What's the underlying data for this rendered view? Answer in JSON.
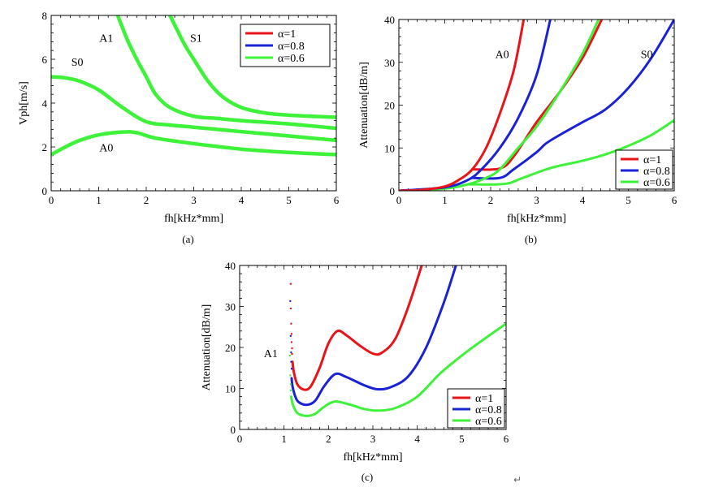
{
  "colors": {
    "alpha_1": "#e8141a",
    "alpha_0_8": "#1a22d6",
    "alpha_0_6": "#3ef23a"
  },
  "return_mark": "↵",
  "chart_data": [
    {
      "id": "a",
      "type": "line",
      "caption": "(a)",
      "xlabel": "fh[kHz*mm]",
      "ylabel": "Vph[m/s]",
      "xlim": [
        0,
        6
      ],
      "ylim": [
        0,
        8
      ],
      "xticks": [
        0,
        1,
        2,
        3,
        4,
        5,
        6
      ],
      "yticks": [
        0,
        2,
        4,
        6,
        8
      ],
      "legend_placement": "top-right",
      "legend_boxed": true,
      "legend": [
        {
          "label": "α=1",
          "color": "#e8141a"
        },
        {
          "label": "α=0.8",
          "color": "#1a22d6"
        },
        {
          "label": "α=0.6",
          "color": "#3ef23a"
        }
      ],
      "annotations": [
        {
          "text": "A1",
          "x": 1.16,
          "y": 6.8
        },
        {
          "text": "S1",
          "x": 3.05,
          "y": 6.8
        },
        {
          "text": "S0",
          "x": 0.55,
          "y": 5.7
        },
        {
          "text": "A0",
          "x": 1.16,
          "y": 1.8
        }
      ],
      "series": [
        {
          "mode": "A0",
          "color": "#3ef23a",
          "x": [
            0,
            0.3,
            0.6,
            1,
            1.5,
            1.8,
            2.2,
            3,
            4,
            5,
            6
          ],
          "y": [
            1.65,
            2.0,
            2.3,
            2.55,
            2.68,
            2.65,
            2.4,
            2.15,
            1.9,
            1.75,
            1.65
          ]
        },
        {
          "mode": "S0",
          "color": "#3ef23a",
          "x": [
            0,
            0.3,
            0.6,
            1,
            1.5,
            2,
            2.5,
            3,
            4,
            5,
            6
          ],
          "y": [
            5.2,
            5.15,
            5.0,
            4.6,
            3.8,
            3.15,
            3.0,
            2.9,
            2.7,
            2.5,
            2.3
          ]
        },
        {
          "mode": "A1",
          "color": "#3ef23a",
          "x": [
            1.4,
            1.6,
            1.8,
            2,
            2.2,
            2.5,
            3,
            3.5,
            4,
            5,
            6
          ],
          "y": [
            8,
            6.9,
            6.0,
            5.2,
            4.4,
            3.8,
            3.4,
            3.3,
            3.2,
            3.05,
            2.85
          ]
        },
        {
          "mode": "S1",
          "color": "#3ef23a",
          "x": [
            2.5,
            2.8,
            3,
            3.3,
            3.6,
            4,
            4.5,
            5,
            6
          ],
          "y": [
            8,
            6.7,
            6.0,
            5.0,
            4.3,
            3.8,
            3.55,
            3.45,
            3.35
          ]
        }
      ]
    },
    {
      "id": "b",
      "type": "line",
      "caption": "(b)",
      "xlabel": "fh[kHz*mm]",
      "ylabel": "Attenuation[dB/m]",
      "xlim": [
        0,
        6
      ],
      "ylim": [
        0,
        40
      ],
      "xticks": [
        0,
        1,
        2,
        3,
        4,
        5,
        6
      ],
      "yticks": [
        0,
        10,
        20,
        30,
        40
      ],
      "legend_placement": "bottom-right",
      "legend_boxed": true,
      "legend": [
        {
          "label": "α=1",
          "color": "#e8141a"
        },
        {
          "label": "α=0.8",
          "color": "#1a22d6"
        },
        {
          "label": "α=0.6",
          "color": "#3ef23a"
        }
      ],
      "annotations": [
        {
          "text": "A0",
          "x": 2.25,
          "y": 31
        },
        {
          "text": "S0",
          "x": 5.4,
          "y": 31
        }
      ],
      "series": [
        {
          "mode": "S0",
          "color": "#3ef23a",
          "x": [
            1.5,
            2.3,
            2.7,
            3.3,
            4,
            4.5,
            5,
            5.5,
            6
          ],
          "y": [
            1.5,
            1.6,
            3,
            5.3,
            7,
            8.5,
            10.5,
            13,
            16.5
          ]
        },
        {
          "mode": "S0",
          "color": "#1a22d6",
          "x": [
            1.6,
            2.2,
            2.5,
            3,
            3.2,
            3.5,
            4,
            4.5,
            5,
            5.5,
            6
          ],
          "y": [
            3,
            3,
            5,
            9,
            11,
            13,
            16,
            19,
            24,
            31,
            40
          ]
        },
        {
          "mode": "S0",
          "color": "#e8141a",
          "x": [
            1.6,
            2.2,
            2.5,
            3,
            3.5,
            4,
            4.42
          ],
          "y": [
            5,
            5.2,
            8,
            16,
            23,
            31,
            40
          ]
        },
        {
          "mode": "A0",
          "color": "#3ef23a",
          "x": [
            0,
            1,
            1.5,
            1.9,
            2.2,
            2.6,
            3,
            3.5,
            4,
            4.35
          ],
          "y": [
            0,
            0.5,
            1.5,
            3,
            5,
            10,
            15,
            23,
            32,
            40
          ]
        },
        {
          "mode": "A0",
          "color": "#1a22d6",
          "x": [
            0,
            1,
            1.5,
            1.8,
            2.2,
            2.6,
            3,
            3.3
          ],
          "y": [
            0,
            0.8,
            2.5,
            5,
            10,
            17,
            27,
            40
          ]
        },
        {
          "mode": "A0",
          "color": "#e8141a",
          "x": [
            0,
            0.5,
            1,
            1.3,
            1.6,
            1.9,
            2.2,
            2.5,
            2.72
          ],
          "y": [
            0,
            0.2,
            1,
            2.5,
            5,
            10,
            18,
            28,
            40
          ]
        }
      ]
    },
    {
      "id": "c",
      "type": "line",
      "caption": "(c)",
      "xlabel": "fh[kHz*mm]",
      "ylabel": "Attenuation[dB/m]",
      "xlim": [
        0,
        6
      ],
      "ylim": [
        0,
        40
      ],
      "xticks": [
        0,
        1,
        2,
        3,
        4,
        5,
        6
      ],
      "yticks": [
        0,
        10,
        20,
        30,
        40
      ],
      "legend_placement": "bottom-right",
      "legend_boxed": true,
      "legend": [
        {
          "label": "α=1",
          "color": "#e8141a"
        },
        {
          "label": "α=0.8",
          "color": "#1a22d6"
        },
        {
          "label": "α=0.6",
          "color": "#3ef23a"
        }
      ],
      "annotations": [
        {
          "text": "A1",
          "x": 0.7,
          "y": 17.6
        }
      ],
      "series": [
        {
          "mode": "A1",
          "color": "#e8141a",
          "dots_x": [
            1.15,
            1.15,
            1.16,
            1.17,
            1.17,
            1.18,
            1.18
          ],
          "dots_y": [
            35.5,
            29.5,
            25.8,
            23.3,
            21.3,
            19.8,
            18.4
          ],
          "x": [
            1.19,
            1.22,
            1.3,
            1.45,
            1.6,
            1.8,
            2,
            2.2,
            2.4,
            2.7,
            3,
            3.2,
            3.5,
            3.8,
            4.1
          ],
          "y": [
            16.5,
            14,
            11,
            9.7,
            10.5,
            15,
            21,
            24,
            23,
            20.5,
            18.5,
            18.7,
            22,
            30,
            40
          ]
        },
        {
          "mode": "A1",
          "color": "#1a22d6",
          "dots_x": [
            1.14,
            1.15,
            1.16,
            1.16,
            1.17
          ],
          "dots_y": [
            31.3,
            22.8,
            18.8,
            16.5,
            14.8
          ],
          "x": [
            1.17,
            1.2,
            1.3,
            1.5,
            1.7,
            1.9,
            2.15,
            2.4,
            2.8,
            3.1,
            3.4,
            3.8,
            4.2,
            4.6,
            4.87
          ],
          "y": [
            12.5,
            10,
            7,
            6,
            7,
            10.5,
            13.5,
            12.8,
            10.8,
            9.8,
            10.3,
            13,
            20,
            31,
            40
          ]
        },
        {
          "mode": "A1",
          "color": "#3ef23a",
          "dots_x": [
            1.13,
            1.14,
            1.15,
            1.15
          ],
          "dots_y": [
            18,
            13.2,
            11,
            9.5
          ],
          "x": [
            1.16,
            1.2,
            1.3,
            1.5,
            1.7,
            1.9,
            2.15,
            2.5,
            2.8,
            3.1,
            3.5,
            4,
            4.5,
            5,
            5.5,
            6
          ],
          "y": [
            8,
            6,
            4,
            3.3,
            3.8,
            5.5,
            6.8,
            6,
            5,
            4.6,
            5.2,
            8,
            13.5,
            18,
            22,
            25.8
          ]
        }
      ]
    }
  ]
}
